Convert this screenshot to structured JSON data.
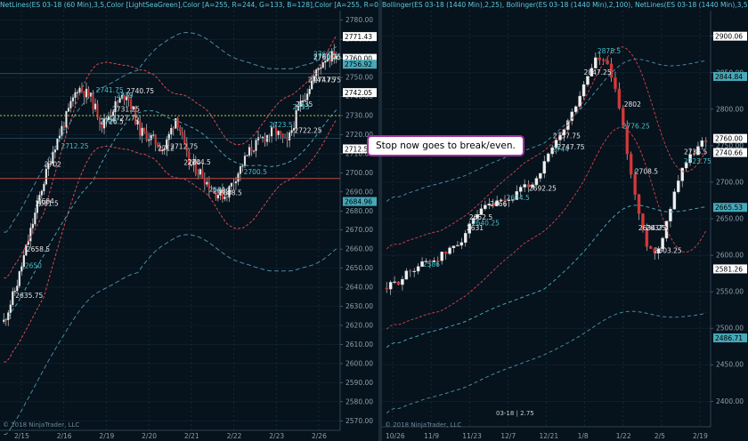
{
  "left_chart": {
    "header": "NetLines(ES 03-18 (60 Min),3,5,Color [LightSeaGreen],Color [A=255, R=244, G=133, B=128],Color [A=255, R=0, G=131,",
    "copyright": "© 2018 NinjaTrader, LLC",
    "y_ticks": [
      "2780.00",
      "2770.00",
      "2760.00",
      "2750.00",
      "2740.00",
      "2730.00",
      "2720.00",
      "2710.00",
      "2700.00",
      "2690.00",
      "2680.00",
      "2670.00",
      "2660.00",
      "2650.00",
      "2640.00",
      "2630.00",
      "2620.00",
      "2610.00",
      "2600.00",
      "2590.00",
      "2580.00",
      "2570.00"
    ],
    "x_ticks": [
      "2/15",
      "2/16",
      "2/19",
      "2/20",
      "2/21",
      "2/22",
      "2/23",
      "2/26"
    ],
    "price_markers": [
      {
        "label": "2771.43",
        "color": "#ffffff"
      },
      {
        "label": "2760.00",
        "color": "#ffffff"
      },
      {
        "label": "2756.92",
        "color": "#46a8b8"
      },
      {
        "label": "2742.05",
        "color": "#ffffff"
      },
      {
        "label": "2712.53",
        "color": "#ffffff"
      },
      {
        "label": "2684.96",
        "color": "#46a8b8"
      }
    ],
    "annotations": [
      "2759.75",
      "2747.75",
      "2740.75",
      "2741.75",
      "2731.25",
      "2722.25",
      "2712.25",
      "2704.5",
      "2688.5",
      "2691",
      "2681.5",
      "2658.5",
      "2650",
      "2635.75",
      "2726.5",
      "2723.5",
      "2712",
      "2702",
      "2700.5",
      "2689",
      "2684",
      "2726",
      "2727.75",
      "2735",
      "2739",
      "2712.75",
      "2704",
      "2762",
      "2760.25",
      "2747.75",
      "2733"
    ]
  },
  "right_chart": {
    "header": "Bollinger(ES 03-18 (1440 Min),2,25), Bollinger(ES 03-18 (1440 Min),2,100), NetLines(ES 03-18 (1440 Min),3,5,Color",
    "copyright": "© 2018 NinjaTrader, LLC",
    "y_ticks": [
      "2900.00",
      "2850.00",
      "2800.00",
      "2750.00",
      "2700.00",
      "2650.00",
      "2600.00",
      "2550.00",
      "2500.00",
      "2450.00",
      "2400.00"
    ],
    "x_ticks": [
      "10/26",
      "11/9",
      "11/23",
      "12/7",
      "12/21",
      "1/8",
      "1/22",
      "2/5",
      "2/19"
    ],
    "price_markers": [
      {
        "label": "2900.06",
        "color": "#ffffff"
      },
      {
        "label": "2844.84",
        "color": "#46a8b8"
      },
      {
        "label": "2760.00",
        "color": "#ffffff"
      },
      {
        "label": "2740.66",
        "color": "#ffffff"
      },
      {
        "label": "2665.53",
        "color": "#46a8b8"
      },
      {
        "label": "2581.26",
        "color": "#ffffff"
      },
      {
        "label": "2486.71",
        "color": "#46a8b8"
      }
    ],
    "annotations": [
      "2878.5",
      "2847.25",
      "2802",
      "2776.25",
      "2747.75",
      "2736.5",
      "2723.75",
      "2708.5",
      "2692.25",
      "2674.5",
      "2666",
      "2652.5",
      "2640.25",
      "2631",
      "2603.25",
      "2586",
      "2634.25",
      "2637",
      "2744",
      "2757.75"
    ],
    "cursor_note": "03-18 | 2.75"
  },
  "callout": {
    "text": "Stop now goes to break/even."
  }
}
